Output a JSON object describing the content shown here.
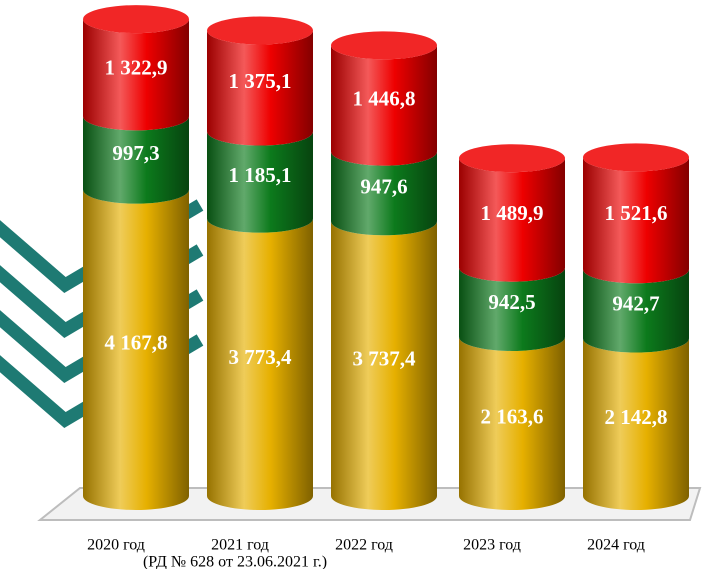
{
  "chart_data": {
    "type": "stacked-cylinder",
    "categories": [
      "2020 год",
      "2021 год",
      "2022 год",
      "2023 год",
      "2024 год"
    ],
    "subtitle": "(РД № 628 от 23.06.2021 г.)",
    "series": [
      {
        "color": "#e6b000",
        "values": [
          4167.8,
          3773.4,
          3737.4,
          2163.6,
          2142.8
        ],
        "value_labels": [
          "4 167,8",
          "3 773,4",
          "3 737,4",
          "2 163,6",
          "2 142,8"
        ]
      },
      {
        "color": "#0c7a1c",
        "values": [
          997.3,
          1185.1,
          947.6,
          942.5,
          942.7
        ],
        "value_labels": [
          "997,3",
          "1 185,1",
          "947,6",
          "942,5",
          "942,7"
        ]
      },
      {
        "color": "#ee0000",
        "values": [
          1322.9,
          1375.1,
          1446.8,
          1489.9,
          1521.6
        ],
        "value_labels": [
          "1 322,9",
          "1 375,1",
          "1 446,8",
          "1 489,9",
          "1 521,6"
        ]
      }
    ]
  }
}
